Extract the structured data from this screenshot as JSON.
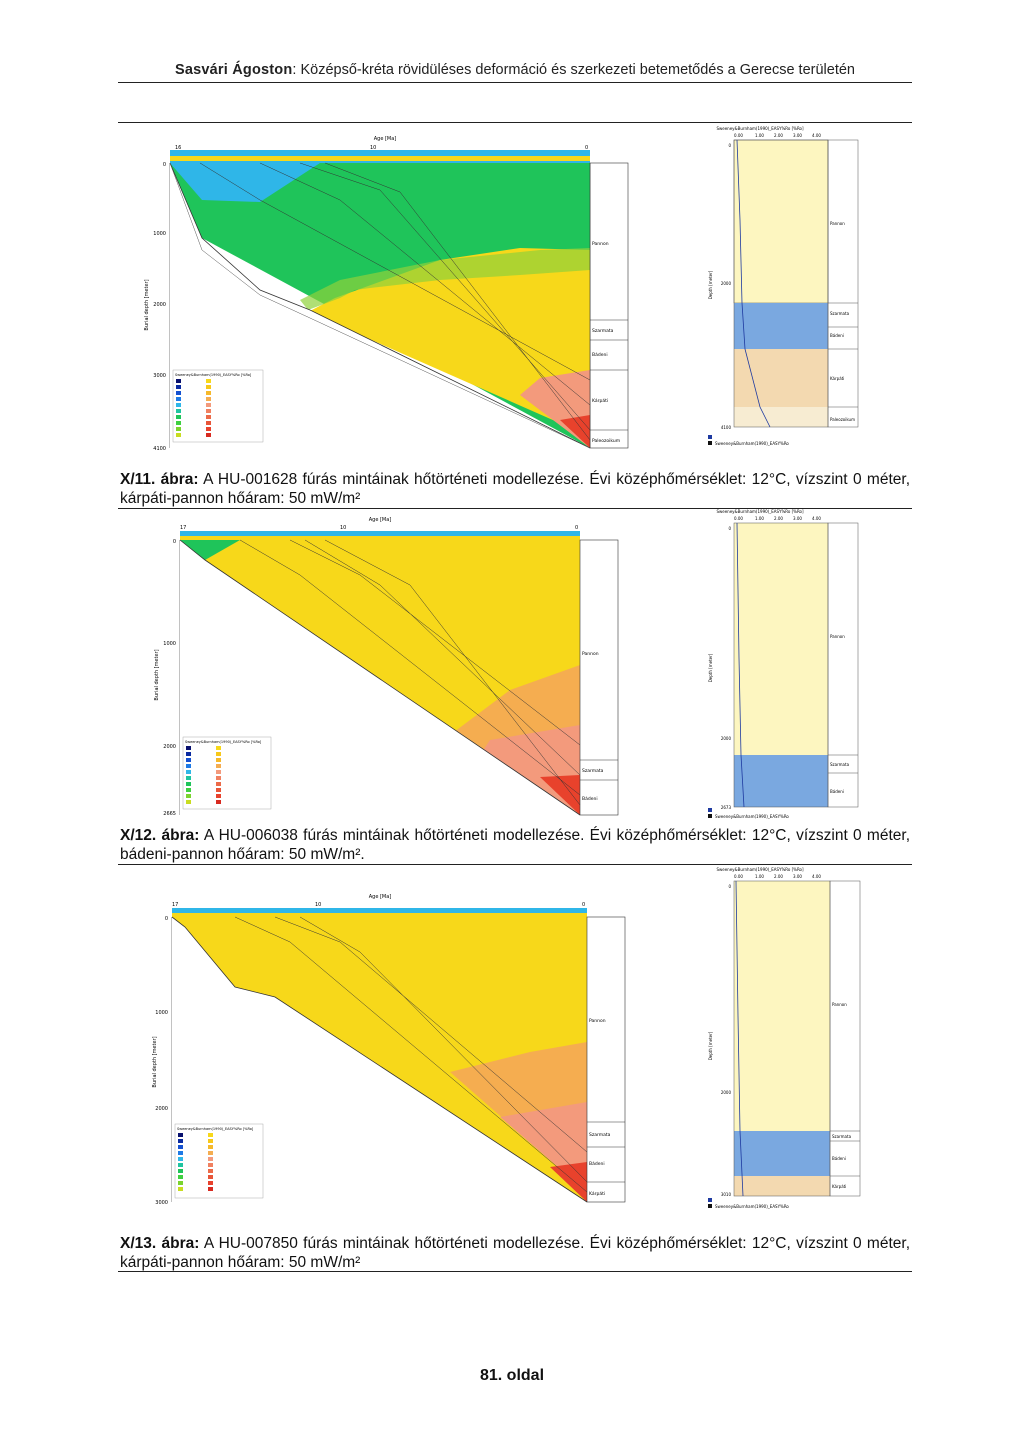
{
  "header": {
    "author": "Sasvári Ágoston",
    "title": "Középső-kréta rövidüléses deformáció és szerkezeti betemetődés a Gerecse területén"
  },
  "figures": [
    {
      "number": "X/11. ábra:",
      "caption": "A HU-001628 fúrás mintáinak hőtörténeti modellezése. Évi középhőmérséklet: 12°C, vízszint 0 méter, kárpáti-pannon hőáram: 50 mW/m²",
      "age_ticks": [
        "16",
        "10",
        "0"
      ],
      "depth_ticks": [
        "0",
        "1000",
        "2000",
        "3000",
        "4100"
      ],
      "stages": [
        "Pannon",
        "Szarmata",
        "Bádeni",
        "Kárpáti",
        "Paleozoikum"
      ],
      "cal_depth_ticks": [
        "0",
        "2000",
        "4100"
      ]
    },
    {
      "number": "X/12. ábra:",
      "caption": "A HU-006038 fúrás mintáinak hőtörténeti modellezése. Évi középhőmérséklet: 12°C, vízszint 0 méter, bádeni-pannon hőáram: 50 mW/m².",
      "age_ticks": [
        "17",
        "10",
        "0"
      ],
      "depth_ticks": [
        "0",
        "1000",
        "2000",
        "2665"
      ],
      "stages": [
        "Pannon",
        "Szarmata",
        "Bádeni"
      ],
      "cal_depth_ticks": [
        "0",
        "2000",
        "2673"
      ]
    },
    {
      "number": "X/13. ábra:",
      "caption": "A HU-007850 fúrás mintáinak hőtörténeti modellezése. Évi középhőmérséklet: 12°C, vízszint 0 méter, kárpáti-pannon hőáram: 50 mW/m²",
      "age_ticks": [
        "17",
        "10",
        "0"
      ],
      "depth_ticks": [
        "0",
        "1000",
        "2000",
        "3000"
      ],
      "stages": [
        "Pannon",
        "Szarmata",
        "Bádeni",
        "Kárpáti"
      ],
      "cal_depth_ticks": [
        "0",
        "2000",
        "3010"
      ]
    }
  ],
  "axis_labels": {
    "age": "Age [Ma]",
    "depth": "Burial depth [meter]",
    "cal_depth": "Depth [meter]",
    "cal_axis": "Sweeney&Burnham(1990)_EASY%Ro [%Ro]",
    "cal_ticks": [
      "0.00",
      "1.00",
      "2.00",
      "3.00",
      "4.00"
    ],
    "legend_title": "Sweeney&Burnham(1990)_EASY%Ro [%Ro]",
    "cal_legend": "Sweeney&Burnham(1990)_EASY%Ro"
  },
  "colors": {
    "sky": "#2fb6e8",
    "yellow": "#f7d81a",
    "green": "#1fc45a",
    "salmon": "#f39a7c",
    "red": "#e8422c",
    "blue_hatch": "#7aa8e0",
    "tan_hatch": "#f3d9b0",
    "pale_yellow": "#fdf6c0"
  },
  "footer": "81. oldal"
}
